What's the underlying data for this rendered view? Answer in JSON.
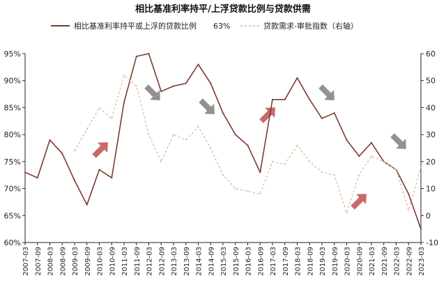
{
  "chart_data": {
    "type": "line",
    "title": "相比基准利率持平/上浮贷款比例与贷款供需",
    "x": [
      "2007-03",
      "2007-09",
      "2008-03",
      "2008-09",
      "2009-03",
      "2009-09",
      "2010-03",
      "2010-09",
      "2011-03",
      "2011-09",
      "2012-03",
      "2012-09",
      "2013-03",
      "2013-09",
      "2014-03",
      "2014-09",
      "2015-03",
      "2015-09",
      "2016-03",
      "2016-09",
      "2017-03",
      "2017-09",
      "2018-03",
      "2018-09",
      "2019-03",
      "2019-09",
      "2020-03",
      "2020-09",
      "2021-03",
      "2021-09",
      "2022-03",
      "2022-09",
      "2023-03"
    ],
    "ylim_left": [
      60,
      95
    ],
    "left_ticks": [
      "95%",
      "90%",
      "85%",
      "80%",
      "75%",
      "70%",
      "65%",
      "60%"
    ],
    "left_tick_values": [
      95,
      90,
      85,
      80,
      75,
      70,
      65,
      60
    ],
    "ylim_right": [
      -10,
      60
    ],
    "right_ticks": [
      "60",
      "50",
      "40",
      "30",
      "20",
      "10",
      "0",
      "-10"
    ],
    "right_tick_values": [
      60,
      50,
      40,
      30,
      20,
      10,
      0,
      -10
    ],
    "series": [
      {
        "name": "相比基准利率持平或上浮的贷款比例",
        "legend_value": "63%",
        "axis": "left",
        "color": "#7a3a2e",
        "values": [
          73.0,
          72.0,
          79.0,
          76.5,
          71.5,
          67.0,
          73.5,
          72.0,
          86.0,
          94.5,
          95.0,
          88.0,
          89.0,
          89.5,
          93.0,
          89.5,
          84.0,
          80.0,
          78.0,
          73.0,
          86.5,
          86.5,
          90.5,
          86.5,
          83.0,
          84.0,
          79.0,
          76.0,
          78.5,
          75.0,
          73.5,
          69.0,
          62.5
        ]
      },
      {
        "name": "贷款需求-审批指数（右轴）",
        "axis": "right",
        "color": "#d9b48c",
        "values": [
          null,
          null,
          null,
          null,
          24,
          32,
          40,
          36,
          52,
          48,
          30,
          20,
          30,
          28,
          33,
          25,
          15,
          10,
          9,
          8,
          20,
          19,
          26,
          20,
          16,
          15,
          1,
          15,
          22,
          20,
          17,
          2,
          18
        ]
      }
    ],
    "arrows": [
      {
        "direction": "up",
        "color": "#c0504d"
      },
      {
        "direction": "down",
        "color": "#7f7f7f"
      },
      {
        "direction": "down",
        "color": "#7f7f7f"
      },
      {
        "direction": "up",
        "color": "#c0504d"
      },
      {
        "direction": "down",
        "color": "#7f7f7f"
      },
      {
        "direction": "up",
        "color": "#c0504d"
      },
      {
        "direction": "down",
        "color": "#7f7f7f"
      }
    ],
    "grid": false,
    "legend_position": "top"
  }
}
